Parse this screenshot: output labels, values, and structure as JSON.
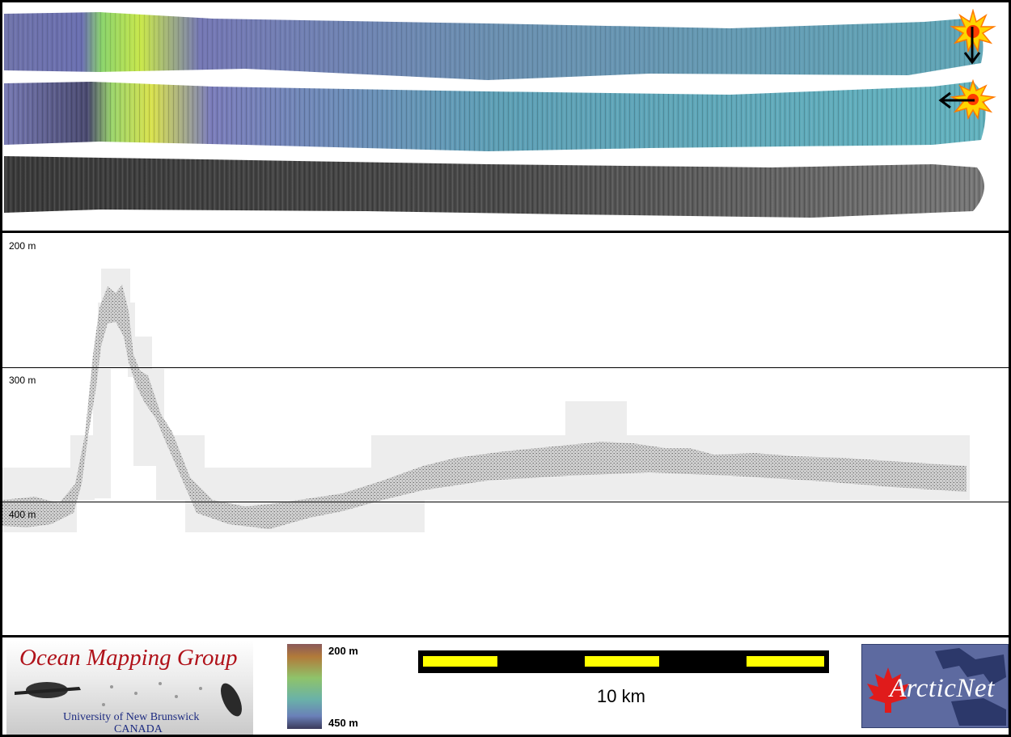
{
  "profile": {
    "depth_labels": [
      "200 m",
      "300 m",
      "400 m"
    ]
  },
  "footer": {
    "logo_title": "Ocean Mapping Group",
    "logo_university": "University of New Brunswick",
    "logo_country": "CANADA",
    "colorbar_top": "200 m",
    "colorbar_bottom": "450 m",
    "scale_label": "10 km",
    "partner_brand": "ArcticNet"
  },
  "colors": {
    "scalebar_fill": "#ffff00",
    "logo_red": "#b0121a",
    "logo_blue": "#1c2a80",
    "arcticnet_bg": "#5d6aa0"
  },
  "icons": [
    "sun-icon",
    "arrow-down-icon",
    "arrow-left-icon",
    "maple-leaf-icon",
    "sonar-fish-icon"
  ]
}
